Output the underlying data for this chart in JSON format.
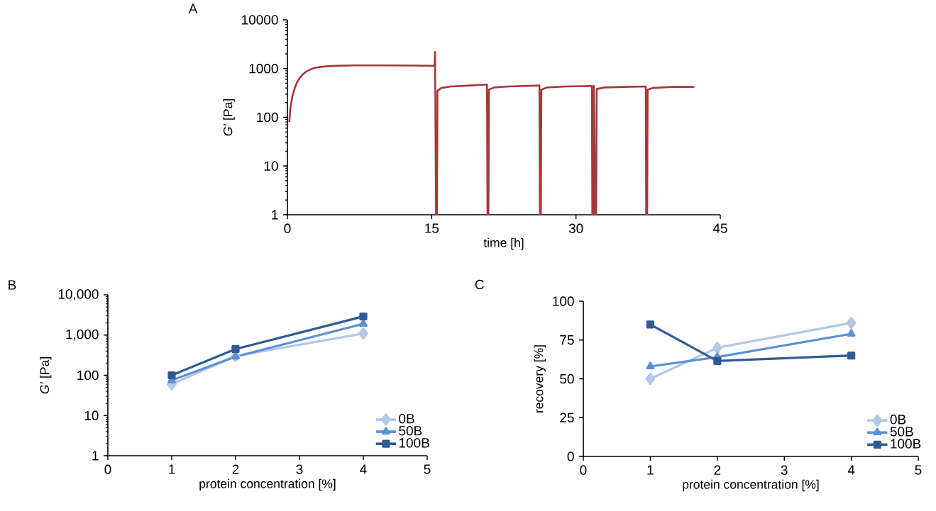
{
  "chart_data": [
    {
      "type": "line",
      "title": "A",
      "xlabel": "time [h]",
      "ylabel": "*G′* [Pa]",
      "xlim": [
        0,
        45
      ],
      "xticks": [
        0,
        15,
        30,
        45
      ],
      "ylim": [
        1,
        10000
      ],
      "yticks": [
        1,
        10,
        100,
        1000,
        10000
      ],
      "log": "y",
      "marker": "none",
      "series": [
        {
          "color": "#a5383a",
          "x": [
            0.2,
            0.3,
            0.5,
            0.8,
            1.0,
            1.3,
            1.6,
            2.0,
            2.5,
            3.0,
            4.0,
            5.0,
            7.0,
            10.0,
            13.0,
            15.3,
            15.35,
            15.45,
            15.55,
            15.6,
            16.0,
            17.0,
            19.0,
            20.75,
            20.8,
            20.9,
            20.95,
            21.5,
            23.0,
            26.2,
            26.25,
            26.35,
            26.4,
            27.0,
            29.0,
            31.65,
            31.7,
            31.8,
            31.85,
            32.0,
            32.1,
            32.15,
            33.0,
            35.0,
            37.25,
            37.3,
            37.4,
            37.45,
            38.0,
            40.0,
            42.3
          ],
          "values": [
            80,
            150,
            260,
            420,
            520,
            650,
            760,
            880,
            980,
            1050,
            1110,
            1140,
            1160,
            1160,
            1150,
            1140,
            2200,
            1,
            1,
            350,
            400,
            430,
            450,
            470,
            1,
            1,
            370,
            410,
            430,
            450,
            1,
            1,
            370,
            410,
            430,
            440,
            1,
            1,
            440,
            1,
            1,
            380,
            410,
            420,
            430,
            1,
            1,
            370,
            400,
            420,
            420
          ]
        }
      ]
    },
    {
      "type": "line",
      "title": "B",
      "xlabel": "protein concentration [%]",
      "ylabel": "*G′* [Pa]",
      "x": [
        1,
        2,
        4
      ],
      "xlim": [
        0,
        5
      ],
      "xticks": [
        0,
        1,
        2,
        3,
        4,
        5
      ],
      "ylim": [
        1,
        10000
      ],
      "yticks": [
        1,
        10,
        100,
        {
          "value": 1000,
          "label": "1,000"
        },
        {
          "value": 10000,
          "label": "10,000"
        }
      ],
      "log": "y",
      "legend": "bottom right",
      "series": [
        {
          "name": "0B",
          "color": "#b4c7e7",
          "marker": "diamond",
          "values": [
            60,
            300,
            1100
          ]
        },
        {
          "name": "50B",
          "color": "#5b8fd6",
          "marker": "triangle",
          "values": [
            75,
            290,
            1900
          ]
        },
        {
          "name": "100B",
          "color": "#2f5b95",
          "marker": "square",
          "values": [
            100,
            450,
            2900
          ]
        }
      ]
    },
    {
      "type": "line",
      "title": "C",
      "xlabel": "protein concentration [%]",
      "ylabel": "recovery [%]",
      "x": [
        1,
        2,
        4
      ],
      "xlim": [
        0,
        5
      ],
      "xticks": [
        0,
        1,
        2,
        3,
        4,
        5
      ],
      "ylim": [
        0,
        100
      ],
      "yticks": [
        0,
        25,
        50,
        75,
        100
      ],
      "legend": "bottom right",
      "series": [
        {
          "name": "0B",
          "color": "#b4c7e7",
          "marker": "diamond",
          "values": [
            50,
            70,
            86
          ]
        },
        {
          "name": "50B",
          "color": "#5b8fd6",
          "marker": "triangle",
          "values": [
            58,
            64,
            79
          ]
        },
        {
          "name": "100B",
          "color": "#2f5b95",
          "marker": "square",
          "values": [
            85,
            61.5,
            65
          ]
        }
      ]
    }
  ]
}
